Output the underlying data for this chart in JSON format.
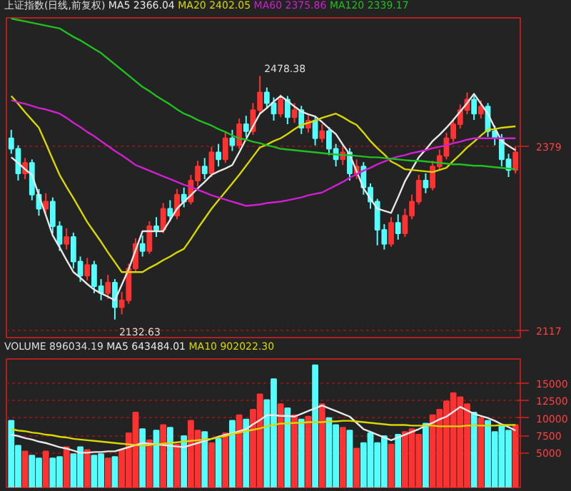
{
  "chart_data": [
    {
      "type": "candlestick",
      "title": "上证指数(日线,前复权)",
      "tick_labels": "y",
      "grid": "y",
      "categories": [
        null,
        null,
        null,
        null,
        null,
        null,
        null,
        null,
        null,
        null,
        null,
        null,
        null,
        null,
        null,
        null,
        null,
        null,
        null,
        null,
        null,
        null,
        null,
        null,
        null,
        null,
        null,
        null,
        null,
        null,
        null,
        null,
        null,
        null,
        null,
        null,
        null,
        null,
        null,
        null,
        null,
        null,
        null,
        null,
        null,
        null,
        null,
        null,
        null,
        null,
        null,
        null,
        null,
        null,
        null,
        null,
        null,
        null,
        null,
        null,
        null,
        null,
        null,
        null,
        null,
        null,
        null,
        null,
        null,
        null,
        null,
        null,
        null,
        null
      ],
      "ylim": [
        2107,
        2561
      ],
      "yticks": [
        2379,
        2117
      ],
      "ohlc": [
        [
          2390,
          2402,
          2368,
          2375
        ],
        [
          2375,
          2380,
          2330,
          2340
        ],
        [
          2340,
          2362,
          2332,
          2355
        ],
        [
          2355,
          2360,
          2302,
          2310
        ],
        [
          2310,
          2318,
          2280,
          2290
        ],
        [
          2290,
          2312,
          2284,
          2300
        ],
        [
          2300,
          2306,
          2255,
          2265
        ],
        [
          2265,
          2272,
          2230,
          2240
        ],
        [
          2240,
          2262,
          2232,
          2250
        ],
        [
          2250,
          2256,
          2205,
          2215
        ],
        [
          2215,
          2222,
          2186,
          2195
        ],
        [
          2195,
          2220,
          2188,
          2210
        ],
        [
          2210,
          2216,
          2170,
          2180
        ],
        [
          2180,
          2190,
          2160,
          2170
        ],
        [
          2170,
          2196,
          2162,
          2185
        ],
        [
          2185,
          2190,
          2132.63,
          2150
        ],
        [
          2150,
          2172,
          2140,
          2160
        ],
        [
          2160,
          2212,
          2155,
          2205
        ],
        [
          2205,
          2248,
          2200,
          2240
        ],
        [
          2240,
          2252,
          2222,
          2230
        ],
        [
          2230,
          2272,
          2226,
          2265
        ],
        [
          2265,
          2278,
          2250,
          2260
        ],
        [
          2260,
          2298,
          2255,
          2290
        ],
        [
          2290,
          2302,
          2272,
          2280
        ],
        [
          2280,
          2318,
          2275,
          2310
        ],
        [
          2310,
          2320,
          2292,
          2300
        ],
        [
          2300,
          2338,
          2296,
          2330
        ],
        [
          2330,
          2358,
          2322,
          2350
        ],
        [
          2350,
          2362,
          2332,
          2340
        ],
        [
          2340,
          2378,
          2335,
          2370
        ],
        [
          2370,
          2382,
          2350,
          2360
        ],
        [
          2360,
          2398,
          2355,
          2390
        ],
        [
          2390,
          2402,
          2372,
          2380
        ],
        [
          2380,
          2418,
          2375,
          2410
        ],
        [
          2410,
          2422,
          2392,
          2400
        ],
        [
          2400,
          2440,
          2395,
          2430
        ],
        [
          2430,
          2478.38,
          2425,
          2455
        ],
        [
          2455,
          2462,
          2432,
          2440
        ],
        [
          2440,
          2448,
          2415,
          2425
        ],
        [
          2425,
          2452,
          2420,
          2445
        ],
        [
          2445,
          2450,
          2410,
          2420
        ],
        [
          2420,
          2440,
          2412,
          2430
        ],
        [
          2430,
          2436,
          2396,
          2405
        ],
        [
          2405,
          2424,
          2398,
          2415
        ],
        [
          2415,
          2420,
          2380,
          2390
        ],
        [
          2390,
          2410,
          2384,
          2400
        ],
        [
          2400,
          2406,
          2366,
          2375
        ],
        [
          2375,
          2382,
          2350,
          2360
        ],
        [
          2360,
          2380,
          2352,
          2370
        ],
        [
          2370,
          2376,
          2330,
          2340
        ],
        [
          2340,
          2360,
          2332,
          2350
        ],
        [
          2350,
          2356,
          2310,
          2320
        ],
        [
          2320,
          2326,
          2290,
          2300
        ],
        [
          2300,
          2304,
          2238,
          2260
        ],
        [
          2260,
          2268,
          2232,
          2240
        ],
        [
          2240,
          2278,
          2236,
          2270
        ],
        [
          2270,
          2282,
          2246,
          2255
        ],
        [
          2255,
          2290,
          2250,
          2280
        ],
        [
          2280,
          2310,
          2275,
          2300
        ],
        [
          2300,
          2338,
          2296,
          2330
        ],
        [
          2330,
          2340,
          2312,
          2320
        ],
        [
          2320,
          2358,
          2316,
          2350
        ],
        [
          2350,
          2374,
          2344,
          2365
        ],
        [
          2365,
          2398,
          2360,
          2390
        ],
        [
          2390,
          2418,
          2385,
          2410
        ],
        [
          2410,
          2438,
          2404,
          2430
        ],
        [
          2430,
          2455,
          2424,
          2445
        ],
        [
          2445,
          2450,
          2416,
          2425
        ],
        [
          2425,
          2444,
          2418,
          2435
        ],
        [
          2435,
          2440,
          2392,
          2400
        ],
        [
          2400,
          2408,
          2380,
          2390
        ],
        [
          2390,
          2396,
          2350,
          2360
        ],
        [
          2360,
          2368,
          2335,
          2345
        ],
        [
          2345,
          2378,
          2340,
          2370
        ]
      ],
      "colors": [
        "#54ffff",
        "#54ffff",
        "#ff3232",
        "#54ffff",
        "#54ffff",
        "#ff3232",
        "#54ffff",
        "#54ffff",
        "#ff3232",
        "#54ffff",
        "#54ffff",
        "#ff3232",
        "#54ffff",
        "#54ffff",
        "#ff3232",
        "#54ffff",
        "#ff3232",
        "#ff3232",
        "#ff3232",
        "#54ffff",
        "#ff3232",
        "#54ffff",
        "#ff3232",
        "#54ffff",
        "#ff3232",
        "#54ffff",
        "#ff3232",
        "#ff3232",
        "#54ffff",
        "#ff3232",
        "#54ffff",
        "#ff3232",
        "#54ffff",
        "#ff3232",
        "#54ffff",
        "#ff3232",
        "#ff3232",
        "#54ffff",
        "#54ffff",
        "#ff3232",
        "#54ffff",
        "#ff3232",
        "#54ffff",
        "#ff3232",
        "#54ffff",
        "#ff3232",
        "#54ffff",
        "#54ffff",
        "#ff3232",
        "#54ffff",
        "#ff3232",
        "#54ffff",
        "#54ffff",
        "#54ffff",
        "#54ffff",
        "#ff3232",
        "#54ffff",
        "#ff3232",
        "#ff3232",
        "#ff3232",
        "#54ffff",
        "#ff3232",
        "#ff3232",
        "#ff3232",
        "#ff3232",
        "#ff3232",
        "#ff3232",
        "#54ffff",
        "#ff3232",
        "#54ffff",
        "#54ffff",
        "#54ffff",
        "#54ffff",
        "#ff3232"
      ],
      "series": [
        {
          "type": "line",
          "name": "MA5 2366.04",
          "color": "#e8e8e8",
          "values": [
            2363,
            2355,
            2346,
            2338,
            2309,
            2281,
            2252,
            2235,
            2217,
            2200,
            2192,
            2183,
            2175,
            2170,
            2165,
            2160,
            2182,
            2204,
            2231,
            2258,
            2258,
            2258,
            2258,
            2274,
            2290,
            2300,
            2309,
            2319,
            2328,
            2338,
            2343,
            2347,
            2352,
            2370,
            2389,
            2407,
            2425,
            2433,
            2442,
            2450,
            2443,
            2435,
            2428,
            2424,
            2421,
            2413,
            2404,
            2396,
            2381,
            2367,
            2343,
            2319,
            2304,
            2290,
            2287,
            2284,
            2306,
            2329,
            2346,
            2363,
            2374,
            2386,
            2395,
            2405,
            2416,
            2428,
            2440,
            2453,
            2439,
            2425,
            2405,
            2386,
            2379,
            2373
          ]
        },
        {
          "type": "line",
          "name": "MA20 2402.05",
          "color": "#d8d800",
          "values": [
            2450,
            2439,
            2427,
            2416,
            2405,
            2383,
            2360,
            2338,
            2321,
            2305,
            2288,
            2271,
            2257,
            2243,
            2228,
            2214,
            2200,
            2200,
            2200,
            2200,
            2206,
            2211,
            2217,
            2222,
            2228,
            2233,
            2247,
            2262,
            2276,
            2290,
            2302,
            2314,
            2326,
            2338,
            2351,
            2364,
            2377,
            2381,
            2386,
            2390,
            2396,
            2403,
            2409,
            2412,
            2415,
            2419,
            2422,
            2425,
            2420,
            2414,
            2409,
            2398,
            2386,
            2376,
            2367,
            2357,
            2352,
            2346,
            2345,
            2344,
            2343,
            2342,
            2345,
            2348,
            2358,
            2367,
            2377,
            2385,
            2394,
            2402,
            2403,
            2405,
            2406,
            2407
          ]
        },
        {
          "type": "line",
          "name": "MA60 2375.86",
          "color": "#d020d0",
          "values": [
            2444,
            2441,
            2439,
            2436,
            2433,
            2431,
            2428,
            2425,
            2419,
            2412,
            2406,
            2399,
            2393,
            2386,
            2379,
            2372,
            2366,
            2359,
            2352,
            2348,
            2344,
            2340,
            2336,
            2332,
            2328,
            2324,
            2321,
            2317,
            2313,
            2309,
            2306,
            2303,
            2300,
            2297,
            2294,
            2295,
            2296,
            2298,
            2299,
            2300,
            2302,
            2304,
            2306,
            2309,
            2311,
            2313,
            2318,
            2323,
            2328,
            2334,
            2339,
            2344,
            2348,
            2353,
            2357,
            2361,
            2364,
            2366,
            2369,
            2371,
            2373,
            2376,
            2378,
            2380,
            2383,
            2385,
            2388,
            2390,
            2390,
            2390,
            2390,
            2390,
            2390,
            2390
          ]
        },
        {
          "type": "line",
          "name": "MA120 2339.17",
          "color": "#20c020",
          "values": [
            2560,
            2558,
            2556,
            2554,
            2552,
            2550,
            2548,
            2546,
            2540,
            2534,
            2529,
            2523,
            2517,
            2511,
            2503,
            2495,
            2487,
            2479,
            2471,
            2463,
            2457,
            2450,
            2444,
            2438,
            2431,
            2425,
            2421,
            2416,
            2412,
            2408,
            2403,
            2399,
            2394,
            2390,
            2388,
            2385,
            2383,
            2380,
            2378,
            2375,
            2374,
            2373,
            2372,
            2371,
            2370,
            2369,
            2368,
            2367,
            2366,
            2366,
            2365,
            2364,
            2363,
            2363,
            2362,
            2361,
            2360,
            2359,
            2358,
            2358,
            2357,
            2356,
            2355,
            2354,
            2353,
            2353,
            2352,
            2351,
            2351,
            2350,
            2349,
            2348,
            2347,
            2346
          ]
        }
      ],
      "annotations": [
        "2478.38",
        "2132.63"
      ]
    },
    {
      "type": "bar",
      "tick_labels": "y",
      "grid": "y",
      "annotations": [
        "VOLUME 896034.19"
      ],
      "categories": [
        null,
        null,
        null,
        null,
        null,
        null,
        null,
        null,
        null,
        null,
        null,
        null,
        null,
        null,
        null,
        null,
        null,
        null,
        null,
        null,
        null,
        null,
        null,
        null,
        null,
        null,
        null,
        null,
        null,
        null,
        null,
        null,
        null,
        null,
        null,
        null,
        null,
        null,
        null,
        null,
        null,
        null,
        null,
        null,
        null,
        null,
        null,
        null,
        null,
        null,
        null,
        null,
        null,
        null,
        null,
        null,
        null,
        null,
        null,
        null,
        null,
        null,
        null,
        null,
        null,
        null,
        null,
        null,
        null,
        null,
        null,
        null,
        null,
        null
      ],
      "ylim": [
        0,
        18500
      ],
      "yticks": [
        5000,
        7500,
        10000,
        12500,
        15000
      ],
      "series": [
        {
          "type": "bar",
          "values": [
            9600,
            6000,
            5200,
            4600,
            4200,
            5200,
            4200,
            4400,
            5800,
            4800,
            5800,
            5400,
            4600,
            4800,
            4200,
            4400,
            5400,
            7800,
            10800,
            8400,
            6800,
            8200,
            9000,
            8600,
            6200,
            7400,
            9600,
            8200,
            8000,
            6400,
            7000,
            7800,
            9600,
            10400,
            9800,
            11200,
            13400,
            12600,
            15600,
            12000,
            11400,
            10400,
            9800,
            10200,
            17600,
            12000,
            10000,
            9000,
            8600,
            8200,
            5600,
            6400,
            7800,
            6400,
            7400,
            6200,
            7600,
            8000,
            8400,
            7600,
            9200,
            10400,
            11200,
            12400,
            13600,
            13000,
            12000,
            10800,
            10000,
            9600,
            8000,
            8800,
            8200,
            9000
          ],
          "colors": [
            "#54ffff",
            "#54ffff",
            "#ff3232",
            "#54ffff",
            "#54ffff",
            "#ff3232",
            "#54ffff",
            "#54ffff",
            "#ff3232",
            "#54ffff",
            "#54ffff",
            "#ff3232",
            "#54ffff",
            "#54ffff",
            "#ff3232",
            "#54ffff",
            "#ff3232",
            "#ff3232",
            "#ff3232",
            "#54ffff",
            "#ff3232",
            "#54ffff",
            "#ff3232",
            "#54ffff",
            "#ff3232",
            "#54ffff",
            "#ff3232",
            "#ff3232",
            "#54ffff",
            "#ff3232",
            "#54ffff",
            "#ff3232",
            "#54ffff",
            "#ff3232",
            "#54ffff",
            "#ff3232",
            "#ff3232",
            "#54ffff",
            "#54ffff",
            "#ff3232",
            "#54ffff",
            "#ff3232",
            "#54ffff",
            "#ff3232",
            "#54ffff",
            "#ff3232",
            "#54ffff",
            "#54ffff",
            "#ff3232",
            "#54ffff",
            "#ff3232",
            "#54ffff",
            "#54ffff",
            "#54ffff",
            "#54ffff",
            "#ff3232",
            "#54ffff",
            "#ff3232",
            "#ff3232",
            "#ff3232",
            "#54ffff",
            "#ff3232",
            "#ff3232",
            "#ff3232",
            "#ff3232",
            "#ff3232",
            "#ff3232",
            "#54ffff",
            "#ff3232",
            "#54ffff",
            "#54ffff",
            "#54ffff",
            "#54ffff",
            "#ff3232"
          ]
        },
        {
          "type": "line",
          "name": "MA5 643484.01",
          "color": "#e8e8e8",
          "values": [
            7600,
            7400,
            7100,
            6900,
            6600,
            6400,
            6100,
            5800,
            5600,
            5300,
            5000,
            5000,
            5100,
            5100,
            5200,
            5200,
            5500,
            5800,
            6100,
            6400,
            6300,
            6200,
            6100,
            6000,
            5900,
            5800,
            6100,
            6400,
            6700,
            7000,
            7300,
            7600,
            7800,
            8100,
            8400,
            9100,
            9700,
            10400,
            10400,
            10300,
            10300,
            10200,
            10600,
            11000,
            11400,
            11800,
            11400,
            11000,
            10600,
            10200,
            9300,
            8400,
            8000,
            7600,
            7200,
            6800,
            7200,
            7600,
            8000,
            8400,
            8900,
            9300,
            9800,
            10200,
            10900,
            11600,
            11100,
            10600,
            10300,
            10000,
            9600,
            9100,
            8700,
            8200
          ]
        },
        {
          "type": "line",
          "name": "MA10 902022.30",
          "color": "#d8d800",
          "values": [
            8400,
            8200,
            8100,
            7900,
            7800,
            7600,
            7500,
            7300,
            7200,
            7000,
            6900,
            6800,
            6700,
            6600,
            6500,
            6400,
            6300,
            6200,
            6100,
            6000,
            6100,
            6200,
            6300,
            6400,
            6500,
            6600,
            6700,
            6800,
            6900,
            7000,
            7200,
            7400,
            7700,
            7900,
            8100,
            8300,
            8500,
            8800,
            9000,
            9200,
            9200,
            9300,
            9300,
            9400,
            9400,
            9400,
            9500,
            9500,
            9600,
            9600,
            9500,
            9400,
            9300,
            9200,
            9100,
            9000,
            9000,
            9000,
            8900,
            8900,
            8900,
            8900,
            8800,
            8800,
            8800,
            8800,
            8900,
            8900,
            8900,
            8900,
            8900,
            9000,
            9000,
            9000
          ]
        }
      ]
    }
  ]
}
